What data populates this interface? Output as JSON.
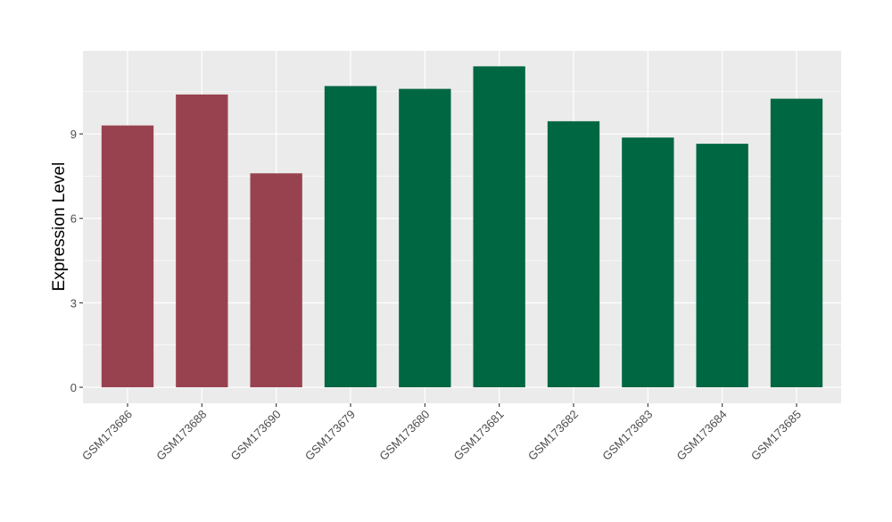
{
  "chart_data": {
    "type": "bar",
    "title": "",
    "xlabel": "",
    "ylabel": "Expression Level",
    "categories": [
      "GSM173686",
      "GSM173688",
      "GSM173690",
      "GSM173679",
      "GSM173680",
      "GSM173681",
      "GSM173682",
      "GSM173683",
      "GSM173684",
      "GSM173685"
    ],
    "values": [
      9.3,
      10.4,
      7.6,
      10.7,
      10.6,
      11.4,
      9.45,
      8.87,
      8.65,
      10.25
    ],
    "bar_colors": [
      "#99424F",
      "#99424F",
      "#99424F",
      "#006743",
      "#006743",
      "#006743",
      "#006743",
      "#006743",
      "#006743",
      "#006743"
    ],
    "yticks": [
      0,
      3,
      6,
      9
    ],
    "ylim": [
      -0.57,
      11.95
    ],
    "grid": true,
    "legend": "none",
    "panel_background": "#EBEBEB",
    "gridline_color": "#FFFFFF"
  }
}
